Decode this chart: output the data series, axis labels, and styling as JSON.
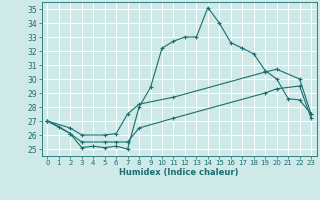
{
  "title": "",
  "xlabel": "Humidex (Indice chaleur)",
  "ylabel": "",
  "xlim": [
    -0.5,
    23.5
  ],
  "ylim": [
    24.5,
    35.5
  ],
  "yticks": [
    25,
    26,
    27,
    28,
    29,
    30,
    31,
    32,
    33,
    34,
    35
  ],
  "xticks": [
    0,
    1,
    2,
    3,
    4,
    5,
    6,
    7,
    8,
    9,
    10,
    11,
    12,
    13,
    14,
    15,
    16,
    17,
    18,
    19,
    20,
    21,
    22,
    23
  ],
  "bg_color": "#cfe8e8",
  "grid_color": "#b0d8d8",
  "line_color": "#1a6e6e",
  "line1_x": [
    0,
    1,
    2,
    3,
    4,
    5,
    6,
    7,
    8,
    9,
    10,
    11,
    12,
    13,
    14,
    15,
    16,
    17,
    18,
    19,
    20,
    21,
    22,
    23
  ],
  "line1_y": [
    27.0,
    26.6,
    26.1,
    25.1,
    25.2,
    25.1,
    25.2,
    25.0,
    28.0,
    29.4,
    32.2,
    32.7,
    33.0,
    33.0,
    35.1,
    34.0,
    32.6,
    32.2,
    31.8,
    30.6,
    30.0,
    28.6,
    28.5,
    27.5
  ],
  "line2_x": [
    0,
    2,
    3,
    5,
    6,
    7,
    8,
    11,
    19,
    20,
    22,
    23
  ],
  "line2_y": [
    27.0,
    26.5,
    26.0,
    26.0,
    26.1,
    27.5,
    28.2,
    28.7,
    30.5,
    30.7,
    30.0,
    27.5
  ],
  "line3_x": [
    0,
    2,
    3,
    5,
    6,
    7,
    8,
    11,
    19,
    20,
    22,
    23
  ],
  "line3_y": [
    27.0,
    26.1,
    25.5,
    25.5,
    25.5,
    25.5,
    26.5,
    27.2,
    29.0,
    29.3,
    29.5,
    27.2
  ]
}
